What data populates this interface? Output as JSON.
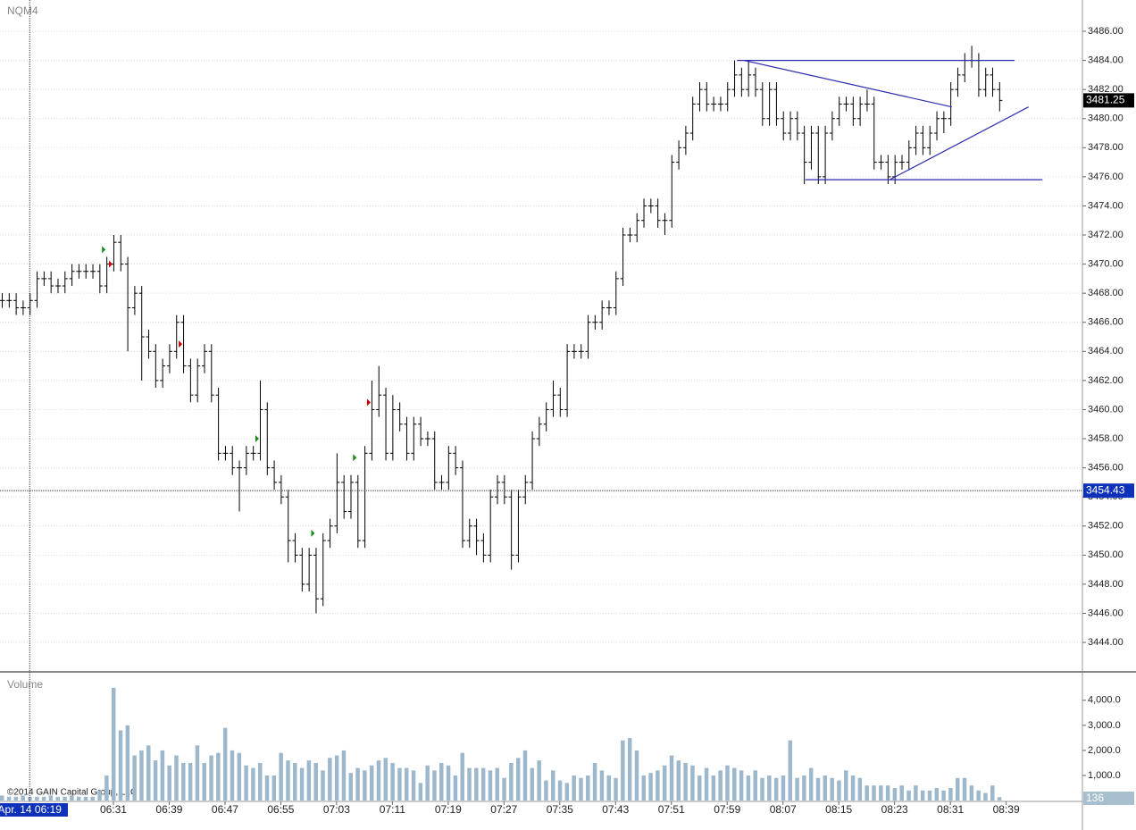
{
  "chart_data": [
    {
      "type": "ohlc",
      "title": "NQM4",
      "copyright": "©2014 GAIN Capital Group, LLC",
      "color": "#000000",
      "grid": true,
      "categories": [
        null,
        null,
        null,
        null,
        null,
        null,
        null,
        null,
        null,
        null,
        null,
        null,
        null,
        null,
        null,
        null,
        "06:31",
        null,
        null,
        null,
        null,
        null,
        null,
        null,
        "06:39",
        null,
        null,
        null,
        null,
        null,
        null,
        null,
        "06:47",
        null,
        null,
        null,
        null,
        null,
        null,
        null,
        "06:55",
        null,
        null,
        null,
        null,
        null,
        null,
        null,
        "07:03",
        null,
        null,
        null,
        null,
        null,
        null,
        null,
        "07:11",
        null,
        null,
        null,
        null,
        null,
        null,
        null,
        "07:19",
        null,
        null,
        null,
        null,
        null,
        null,
        null,
        "07:27",
        null,
        null,
        null,
        null,
        null,
        null,
        null,
        "07:35",
        null,
        null,
        null,
        null,
        null,
        null,
        null,
        "07:43",
        null,
        null,
        null,
        null,
        null,
        null,
        null,
        "07:51",
        null,
        null,
        null,
        null,
        null,
        null,
        null,
        "07:59",
        null,
        null,
        null,
        null,
        null,
        null,
        null,
        "08:07",
        null,
        null,
        null,
        null,
        null,
        null,
        null,
        "08:15",
        null,
        null,
        null,
        null,
        null,
        null,
        null,
        "08:23",
        null,
        null,
        null,
        null,
        null,
        null,
        null,
        "08:31",
        null,
        null,
        null,
        null,
        null,
        null,
        null,
        "08:39"
      ],
      "open": [
        3467.5,
        3467.5,
        3467.5,
        3467,
        3467,
        3467.5,
        3469,
        3469,
        3468.5,
        3468.5,
        3469,
        3469.5,
        3469.5,
        3469.5,
        3469.5,
        3468.5,
        3470,
        3471.5,
        3470,
        3467,
        3468,
        3465,
        3464,
        3462,
        3463,
        3464,
        3466,
        3463,
        3461,
        3463,
        3464,
        3461,
        3457,
        3457,
        3456,
        3456,
        3457,
        3457,
        3460,
        3456,
        3455,
        3454,
        3451,
        3450,
        3448,
        3450,
        3447,
        3451,
        3452,
        3455,
        3453,
        3455,
        3451,
        3457,
        3460,
        3461,
        3457,
        3460,
        3459,
        3457,
        3459,
        3458,
        3458,
        3455,
        3455,
        3457,
        3456,
        3451,
        3452,
        3451,
        3450,
        3454,
        3455,
        3454,
        3450,
        3454,
        3455,
        3458,
        3459,
        3460,
        3461,
        3460,
        3464,
        3464,
        3464,
        3466,
        3466,
        3467,
        3467,
        3469,
        3472,
        3472,
        3473,
        3474,
        3474,
        3473,
        3473,
        3477,
        3478,
        3479,
        3481,
        3482,
        3481,
        3481,
        3481,
        3482,
        3483,
        3482,
        3483,
        3482,
        3480,
        3482,
        3480,
        3479,
        3480,
        3479,
        3477,
        3479,
        3476,
        3479,
        3480,
        3481,
        3481,
        3480,
        3481,
        3481,
        3477,
        3477,
        3476,
        3477,
        3477,
        3478,
        3479,
        3478,
        3479,
        3480,
        3480,
        3482,
        3483,
        3484,
        3484,
        3482,
        3483,
        3482,
        null
      ],
      "high": [
        3468,
        3468,
        3468,
        3467.5,
        3468,
        3469.5,
        3469.5,
        3469.5,
        3469,
        3469.5,
        3470,
        3470,
        3470,
        3470,
        3470,
        3470.5,
        3472,
        3472,
        3470.5,
        3468.5,
        3468.5,
        3465.5,
        3464.5,
        3463.5,
        3464.5,
        3466.5,
        3466.5,
        3463.5,
        3463.5,
        3464.5,
        3464.5,
        3461.5,
        3457.5,
        3457.5,
        3456.5,
        3457.5,
        3457.5,
        3462,
        3460.5,
        3456.5,
        3455.5,
        3454.5,
        3451.5,
        3450.5,
        3450.5,
        3450.5,
        3451.5,
        3452.5,
        3457,
        3455.5,
        3455.5,
        3455.5,
        3457.5,
        3462,
        3463,
        3461.5,
        3461,
        3460.5,
        3459.5,
        3459.5,
        3459.5,
        3458.5,
        3458.5,
        3455.5,
        3457.5,
        3457.5,
        3456.5,
        3452.5,
        3452.5,
        3451.5,
        3454.5,
        3455.5,
        3455.5,
        3454.5,
        3454.5,
        3455.5,
        3458.5,
        3459.5,
        3460.5,
        3462,
        3461.5,
        3464.5,
        3464.5,
        3464.5,
        3466.5,
        3466.5,
        3467.5,
        3467.5,
        3469.5,
        3472.5,
        3472.5,
        3473.5,
        3474.5,
        3474.5,
        3474.5,
        3473.5,
        3477.5,
        3478.5,
        3479.5,
        3481.5,
        3482.5,
        3482.5,
        3481.5,
        3481.5,
        3482.5,
        3484,
        3483.5,
        3484,
        3483.5,
        3482.5,
        3482.5,
        3482.5,
        3480.5,
        3480.5,
        3480.5,
        3479.5,
        3479.5,
        3479.5,
        3479.5,
        3480.5,
        3481.5,
        3481.5,
        3481.5,
        3481.5,
        3482,
        3481.5,
        3477.5,
        3477.5,
        3477.5,
        3477.5,
        3478.5,
        3479.5,
        3479.5,
        3479.5,
        3480.5,
        3480.5,
        3482.5,
        3483.5,
        3484.5,
        3485,
        3484.5,
        3483.5,
        3483.5,
        3482.5,
        null
      ],
      "low": [
        3467,
        3467,
        3466.5,
        3466.5,
        3466.5,
        3467,
        3468.5,
        3468,
        3468,
        3468,
        3468.5,
        3469,
        3469,
        3469,
        3468,
        3468,
        3469.5,
        3469.5,
        3464,
        3466.5,
        3462,
        3463.5,
        3461.5,
        3461.5,
        3462.5,
        3463.5,
        3462.5,
        3460.5,
        3460.5,
        3462.5,
        3460.5,
        3456.5,
        3456.5,
        3455.5,
        3453,
        3455.5,
        3456.5,
        3456.5,
        3455.5,
        3454.5,
        3453.5,
        3449.5,
        3449.5,
        3447.5,
        3447.5,
        3446,
        3446.5,
        3450.5,
        3451.5,
        3452.5,
        3452.5,
        3450.5,
        3450.5,
        3456.5,
        3459.5,
        3456.5,
        3456.5,
        3458.5,
        3456.5,
        3456.5,
        3457.5,
        3457.5,
        3454.5,
        3454.5,
        3454.5,
        3455.5,
        3450.5,
        3450.5,
        3450,
        3449.5,
        3449.5,
        3453.5,
        3453.5,
        3449,
        3449.5,
        3453.5,
        3454.5,
        3457.5,
        3458.5,
        3459.5,
        3459.5,
        3459.5,
        3463.5,
        3463.5,
        3463.5,
        3465.5,
        3465.5,
        3466.5,
        3466.5,
        3468.5,
        3471.5,
        3471.5,
        3472.5,
        3473.5,
        3472.5,
        3472,
        3472.5,
        3476.5,
        3477.5,
        3478.5,
        3480.5,
        3480.5,
        3480.5,
        3480.5,
        3480.5,
        3481.5,
        3481.5,
        3481.5,
        3481.5,
        3479.5,
        3479.5,
        3479.5,
        3478.5,
        3478.5,
        3478.5,
        3475.5,
        3476.5,
        3475.5,
        3475.5,
        3478.5,
        3479.5,
        3480.5,
        3479.5,
        3479.5,
        3480.5,
        3476.5,
        3476.5,
        3475.5,
        3475.5,
        3476.5,
        3476.5,
        3477.5,
        3477.5,
        3477.5,
        3478.5,
        3479,
        3479.5,
        3481.5,
        3482.5,
        3483.5,
        3481.5,
        3481.5,
        3481.5,
        3480.5,
        null
      ],
      "close": [
        3467.5,
        3467.5,
        3467,
        3467,
        3467.5,
        3469,
        3469,
        3468.5,
        3468.5,
        3469,
        3469.5,
        3469.5,
        3469.5,
        3469.5,
        3468.5,
        3470,
        3471.5,
        3470,
        3467,
        3468,
        3465,
        3464,
        3462,
        3463,
        3464,
        3466,
        3463,
        3461,
        3463,
        3464,
        3461,
        3457,
        3457,
        3456,
        3456,
        3457,
        3457,
        3460,
        3456,
        3455,
        3454,
        3451,
        3450,
        3448,
        3450,
        3447,
        3451,
        3452,
        3455,
        3453,
        3455,
        3451,
        3457,
        3460,
        3461,
        3457,
        3460,
        3459,
        3457,
        3459,
        3458,
        3458,
        3455,
        3455,
        3457,
        3456,
        3451,
        3452,
        3451,
        3450,
        3454,
        3455,
        3454,
        3450,
        3454,
        3455,
        3458,
        3459,
        3460,
        3461,
        3460,
        3464,
        3464,
        3464,
        3466,
        3466,
        3467,
        3467,
        3469,
        3472,
        3472,
        3473,
        3474,
        3474,
        3473,
        3473,
        3477,
        3478,
        3479,
        3481,
        3482,
        3481,
        3481,
        3481,
        3482,
        3483,
        3482,
        3483,
        3482,
        3480,
        3482,
        3480,
        3479,
        3480,
        3479,
        3477,
        3479,
        3476,
        3479,
        3480,
        3481,
        3481,
        3480,
        3481,
        3481,
        3477,
        3477,
        3476,
        3477,
        3477,
        3478,
        3479,
        3478,
        3479,
        3480,
        3480,
        3482,
        3483,
        3484,
        3484,
        3482,
        3483,
        3482,
        3481.25,
        null
      ],
      "ylim": [
        3442.1,
        3488.15
      ],
      "yticks": [
        {
          "value": 3444,
          "label": "3444.00"
        },
        {
          "value": 3446,
          "label": "3446.00"
        },
        {
          "value": 3448,
          "label": "3448.00"
        },
        {
          "value": 3450,
          "label": "3450.00"
        },
        {
          "value": 3452,
          "label": "3452.00"
        },
        {
          "value": 3454,
          "label": "3454.00"
        },
        {
          "value": 3456,
          "label": "3456.00"
        },
        {
          "value": 3458,
          "label": "3458.00"
        },
        {
          "value": 3460,
          "label": "3460.00"
        },
        {
          "value": 3462,
          "label": "3462.00"
        },
        {
          "value": 3464,
          "label": "3464.00"
        },
        {
          "value": 3466,
          "label": "3466.00"
        },
        {
          "value": 3468,
          "label": "3468.00"
        },
        {
          "value": 3470,
          "label": "3470.00"
        },
        {
          "value": 3472,
          "label": "3472.00"
        },
        {
          "value": 3474,
          "label": "3474.00"
        },
        {
          "value": 3476,
          "label": "3476.00"
        },
        {
          "value": 3478,
          "label": "3478.00"
        },
        {
          "value": 3480,
          "label": "3480.00"
        },
        {
          "value": 3482,
          "label": "3482.00"
        },
        {
          "value": 3484,
          "label": "3484.00"
        },
        {
          "value": 3486,
          "label": "3486.00"
        }
      ],
      "trendlines": {
        "color": "#2b2bb0",
        "lines": [
          [
            105.4,
            3484,
            145.2,
            3484
          ],
          [
            106.4,
            3484,
            136.2,
            3480.8
          ],
          [
            115.2,
            3475.8,
            149.2,
            3475.8
          ],
          [
            127.3,
            3475.8,
            147.2,
            3480.8
          ]
        ]
      },
      "signals": [
        {
          "index": 15,
          "price": 3471,
          "color": "#1a8a1a"
        },
        {
          "index": 16,
          "price": 3470,
          "color": "#cc0000"
        },
        {
          "index": 26,
          "price": 3464.5,
          "color": "#cc0000"
        },
        {
          "index": 37,
          "price": 3458,
          "color": "#1a8a1a"
        },
        {
          "index": 45,
          "price": 3451.5,
          "color": "#1a8a1a"
        },
        {
          "index": 51,
          "price": 3456.7,
          "color": "#1a8a1a"
        },
        {
          "index": 53,
          "price": 3460.5,
          "color": "#cc0000"
        }
      ],
      "crosshair": {
        "index": 4,
        "label": "Apr. 14 06:19",
        "price": 3454.43,
        "color": "#0d31b8"
      }
    },
    {
      "type": "bar",
      "title": "Volume",
      "color": "#9db8cc",
      "values": [
        200,
        150,
        150,
        200,
        150,
        150,
        150,
        200,
        150,
        150,
        200,
        150,
        150,
        150,
        400,
        1000,
        4500,
        2800,
        3000,
        1800,
        2000,
        2200,
        1600,
        2000,
        1400,
        1800,
        1500,
        1500,
        2200,
        1500,
        1800,
        1900,
        2900,
        2000,
        1900,
        1400,
        1300,
        1500,
        1000,
        1000,
        1900,
        1600,
        1500,
        1300,
        1600,
        1500,
        1200,
        1700,
        1800,
        2000,
        1100,
        1300,
        1200,
        1400,
        1600,
        1700,
        1500,
        1300,
        1300,
        1200,
        700,
        1400,
        1200,
        1500,
        1400,
        1000,
        1900,
        1300,
        1300,
        1300,
        1200,
        1300,
        900,
        1500,
        1700,
        2000,
        1300,
        1600,
        800,
        1200,
        800,
        700,
        1000,
        900,
        1000,
        1500,
        1200,
        1000,
        900,
        2400,
        2500,
        2000,
        1000,
        1100,
        1200,
        1400,
        1800,
        1600,
        1500,
        1400,
        1000,
        1300,
        1000,
        1200,
        1400,
        1300,
        1200,
        1000,
        1200,
        900,
        1000,
        900,
        1000,
        2400,
        900,
        1000,
        1300,
        900,
        1000,
        900,
        800,
        1200,
        1000,
        900,
        600,
        600,
        600,
        600,
        500,
        600,
        400,
        600,
        400,
        400,
        500,
        400,
        500,
        900,
        900,
        600,
        400,
        300,
        600,
        136,
        null
      ],
      "ylim": [
        0,
        4850
      ],
      "yticks": [
        {
          "value": 1000,
          "label": "1,000.0"
        },
        {
          "value": 2000,
          "label": "2,000.0"
        },
        {
          "value": 3000,
          "label": "3,000.0"
        },
        {
          "value": 4000,
          "label": "4,000.0"
        }
      ]
    }
  ]
}
